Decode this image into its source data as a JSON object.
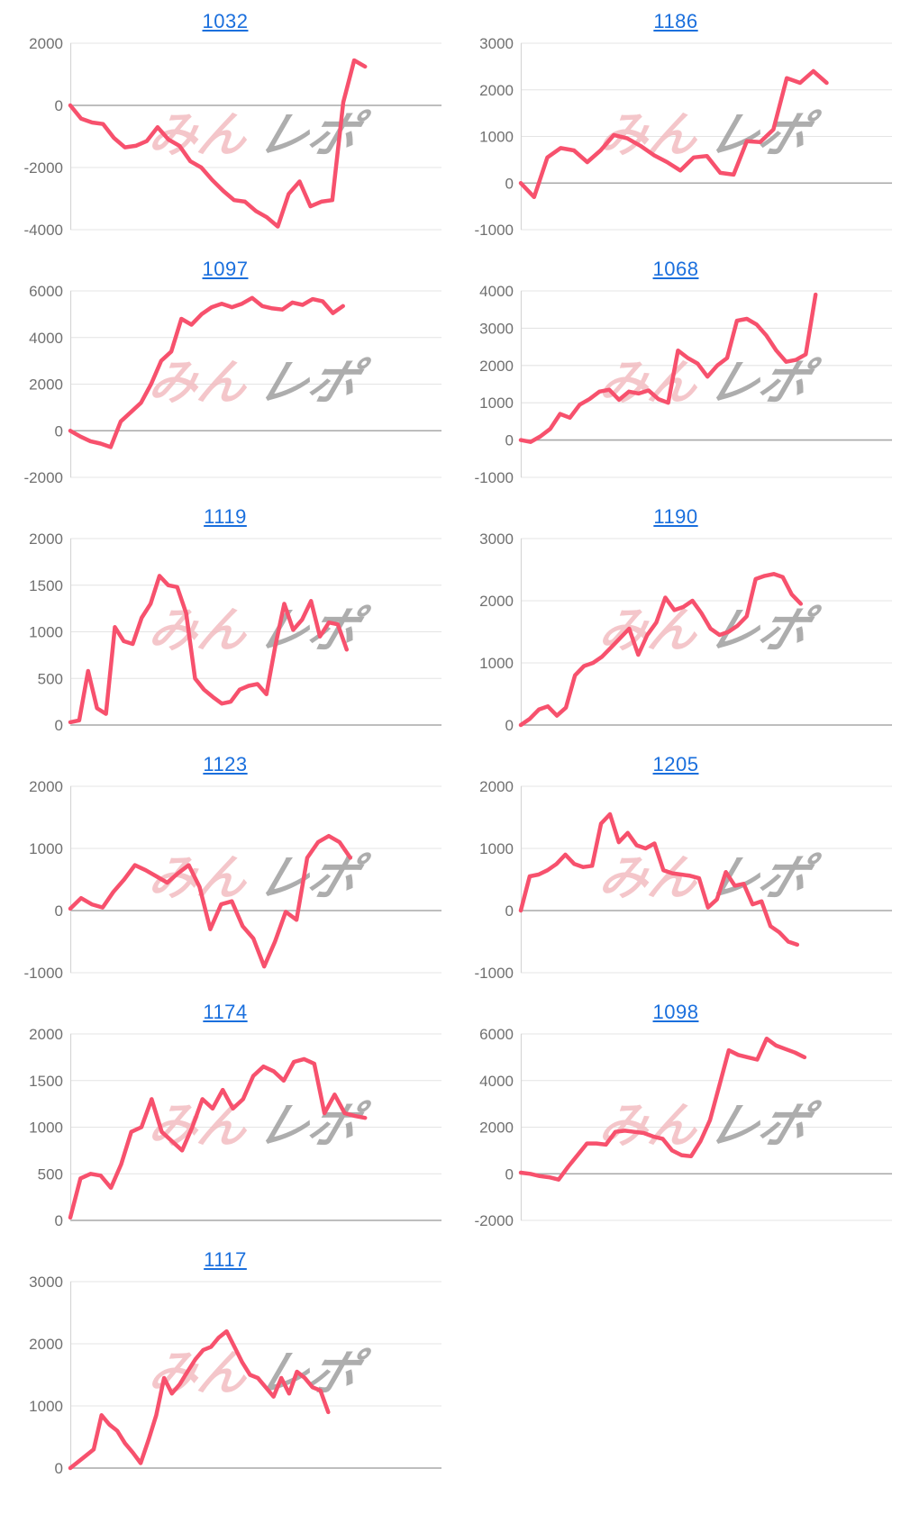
{
  "page": {
    "background": "#ffffff",
    "description_labels": {}
  },
  "styles": {
    "line_color": "#f7516d",
    "title_color": "#1a6fdd",
    "tick_color": "#707070",
    "grid_color": "#e4e4e4",
    "zero_line_color": "#a8a8a8",
    "axis_color": "#d6d6d6",
    "watermark_pink": "#f2b9bd",
    "watermark_gray": "#9f9f9f"
  },
  "watermark": {
    "pink_text": "みん",
    "gray_text": "レポ"
  },
  "chart_data": [
    {
      "type": "line",
      "title": "1032",
      "ylim": [
        -4000,
        2000
      ],
      "yticks": [
        2000,
        0,
        -2000,
        -4000
      ],
      "x_end_frac": 0.8,
      "grid": true,
      "legend": false,
      "values": [
        0,
        -430,
        -550,
        -600,
        -1050,
        -1350,
        -1300,
        -1150,
        -700,
        -1100,
        -1300,
        -1800,
        -2000,
        -2400,
        -2750,
        -3050,
        -3100,
        -3400,
        -3600,
        -3900,
        -2850,
        -2450,
        -3250,
        -3100,
        -3050,
        100,
        1450,
        1250
      ]
    },
    {
      "type": "line",
      "title": "1186",
      "ylim": [
        -1000,
        3000
      ],
      "yticks": [
        3000,
        2000,
        1000,
        0,
        -1000
      ],
      "x_end_frac": 0.83,
      "grid": true,
      "legend": false,
      "values": [
        0,
        -300,
        550,
        750,
        700,
        450,
        700,
        1030,
        960,
        800,
        600,
        450,
        270,
        550,
        580,
        220,
        180,
        900,
        880,
        1150,
        2250,
        2150,
        2400,
        2150
      ]
    },
    {
      "type": "line",
      "title": "1097",
      "ylim": [
        -2000,
        6000
      ],
      "yticks": [
        6000,
        4000,
        2000,
        0,
        -2000
      ],
      "x_end_frac": 0.74,
      "grid": true,
      "legend": false,
      "values": [
        0,
        -250,
        -450,
        -550,
        -700,
        400,
        800,
        1200,
        2000,
        3000,
        3400,
        4800,
        4550,
        5000,
        5300,
        5450,
        5300,
        5450,
        5700,
        5350,
        5250,
        5200,
        5500,
        5400,
        5650,
        5550,
        5050,
        5350
      ]
    },
    {
      "type": "line",
      "title": "1068",
      "ylim": [
        -1000,
        4000
      ],
      "yticks": [
        4000,
        3000,
        2000,
        1000,
        0,
        -1000
      ],
      "x_end_frac": 0.8,
      "grid": true,
      "legend": false,
      "values": [
        0,
        -50,
        100,
        300,
        700,
        600,
        950,
        1100,
        1300,
        1350,
        1080,
        1300,
        1250,
        1330,
        1100,
        1000,
        2400,
        2200,
        2050,
        1700,
        2000,
        2200,
        3200,
        3250,
        3100,
        2800,
        2400,
        2100,
        2150,
        2300,
        3900
      ]
    },
    {
      "type": "line",
      "title": "1119",
      "ylim": [
        0,
        2000
      ],
      "yticks": [
        2000,
        1500,
        1000,
        500,
        0
      ],
      "x_end_frac": 0.75,
      "grid": true,
      "legend": false,
      "values": [
        30,
        50,
        580,
        180,
        120,
        1050,
        900,
        870,
        1150,
        1300,
        1600,
        1500,
        1480,
        1200,
        500,
        380,
        300,
        230,
        250,
        380,
        420,
        440,
        330,
        850,
        1300,
        1020,
        1130,
        1330,
        950,
        1100,
        1080,
        810
      ]
    },
    {
      "type": "line",
      "title": "1190",
      "ylim": [
        0,
        3000
      ],
      "yticks": [
        3000,
        2000,
        1000,
        0
      ],
      "x_end_frac": 0.76,
      "grid": true,
      "legend": false,
      "values": [
        0,
        100,
        250,
        300,
        150,
        280,
        800,
        950,
        1000,
        1100,
        1250,
        1400,
        1550,
        1130,
        1450,
        1650,
        2050,
        1850,
        1900,
        2000,
        1800,
        1550,
        1450,
        1500,
        1600,
        1750,
        2350,
        2400,
        2430,
        2380,
        2100,
        1950
      ]
    },
    {
      "type": "line",
      "title": "1123",
      "ylim": [
        -1000,
        2000
      ],
      "yticks": [
        2000,
        1000,
        0,
        -1000
      ],
      "x_end_frac": 0.76,
      "grid": true,
      "legend": false,
      "values": [
        30,
        200,
        100,
        50,
        300,
        500,
        730,
        650,
        550,
        450,
        600,
        730,
        380,
        -300,
        100,
        150,
        -250,
        -450,
        -900,
        -500,
        -20,
        -150,
        850,
        1100,
        1200,
        1100,
        850
      ]
    },
    {
      "type": "line",
      "title": "1205",
      "ylim": [
        -1000,
        2000
      ],
      "yticks": [
        2000,
        1000,
        0,
        -1000
      ],
      "x_end_frac": 0.75,
      "grid": true,
      "legend": false,
      "values": [
        0,
        550,
        580,
        650,
        750,
        900,
        750,
        700,
        720,
        1400,
        1550,
        1100,
        1250,
        1050,
        1000,
        1080,
        650,
        600,
        580,
        560,
        520,
        50,
        180,
        620,
        400,
        430,
        100,
        150,
        -250,
        -350,
        -500,
        -550
      ]
    },
    {
      "type": "line",
      "title": "1174",
      "ylim": [
        0,
        2000
      ],
      "yticks": [
        2000,
        1500,
        1000,
        500,
        0
      ],
      "x_end_frac": 0.8,
      "grid": true,
      "legend": false,
      "values": [
        30,
        450,
        500,
        480,
        350,
        600,
        950,
        1000,
        1300,
        950,
        850,
        750,
        1000,
        1300,
        1200,
        1400,
        1200,
        1300,
        1550,
        1650,
        1600,
        1500,
        1700,
        1730,
        1680,
        1150,
        1350,
        1150,
        1120,
        1100
      ]
    },
    {
      "type": "line",
      "title": "1098",
      "ylim": [
        -2000,
        6000
      ],
      "yticks": [
        6000,
        4000,
        2000,
        0,
        -2000
      ],
      "x_end_frac": 0.77,
      "grid": true,
      "legend": false,
      "values": [
        50,
        0,
        -100,
        -150,
        -250,
        300,
        800,
        1300,
        1300,
        1250,
        1800,
        1850,
        1800,
        1750,
        1600,
        1500,
        1000,
        800,
        750,
        1400,
        2300,
        3800,
        5300,
        5100,
        5000,
        4900,
        5800,
        5500,
        5350,
        5200,
        5000
      ]
    },
    {
      "type": "line",
      "title": "1117",
      "ylim": [
        0,
        3000
      ],
      "yticks": [
        3000,
        2000,
        1000,
        0
      ],
      "x_end_frac": 0.7,
      "grid": true,
      "legend": false,
      "values": [
        0,
        100,
        200,
        300,
        850,
        700,
        600,
        400,
        250,
        80,
        450,
        850,
        1450,
        1200,
        1350,
        1550,
        1750,
        1900,
        1950,
        2100,
        2200,
        1950,
        1700,
        1500,
        1450,
        1300,
        1150,
        1450,
        1200,
        1550,
        1450,
        1300,
        1250,
        900
      ]
    }
  ]
}
